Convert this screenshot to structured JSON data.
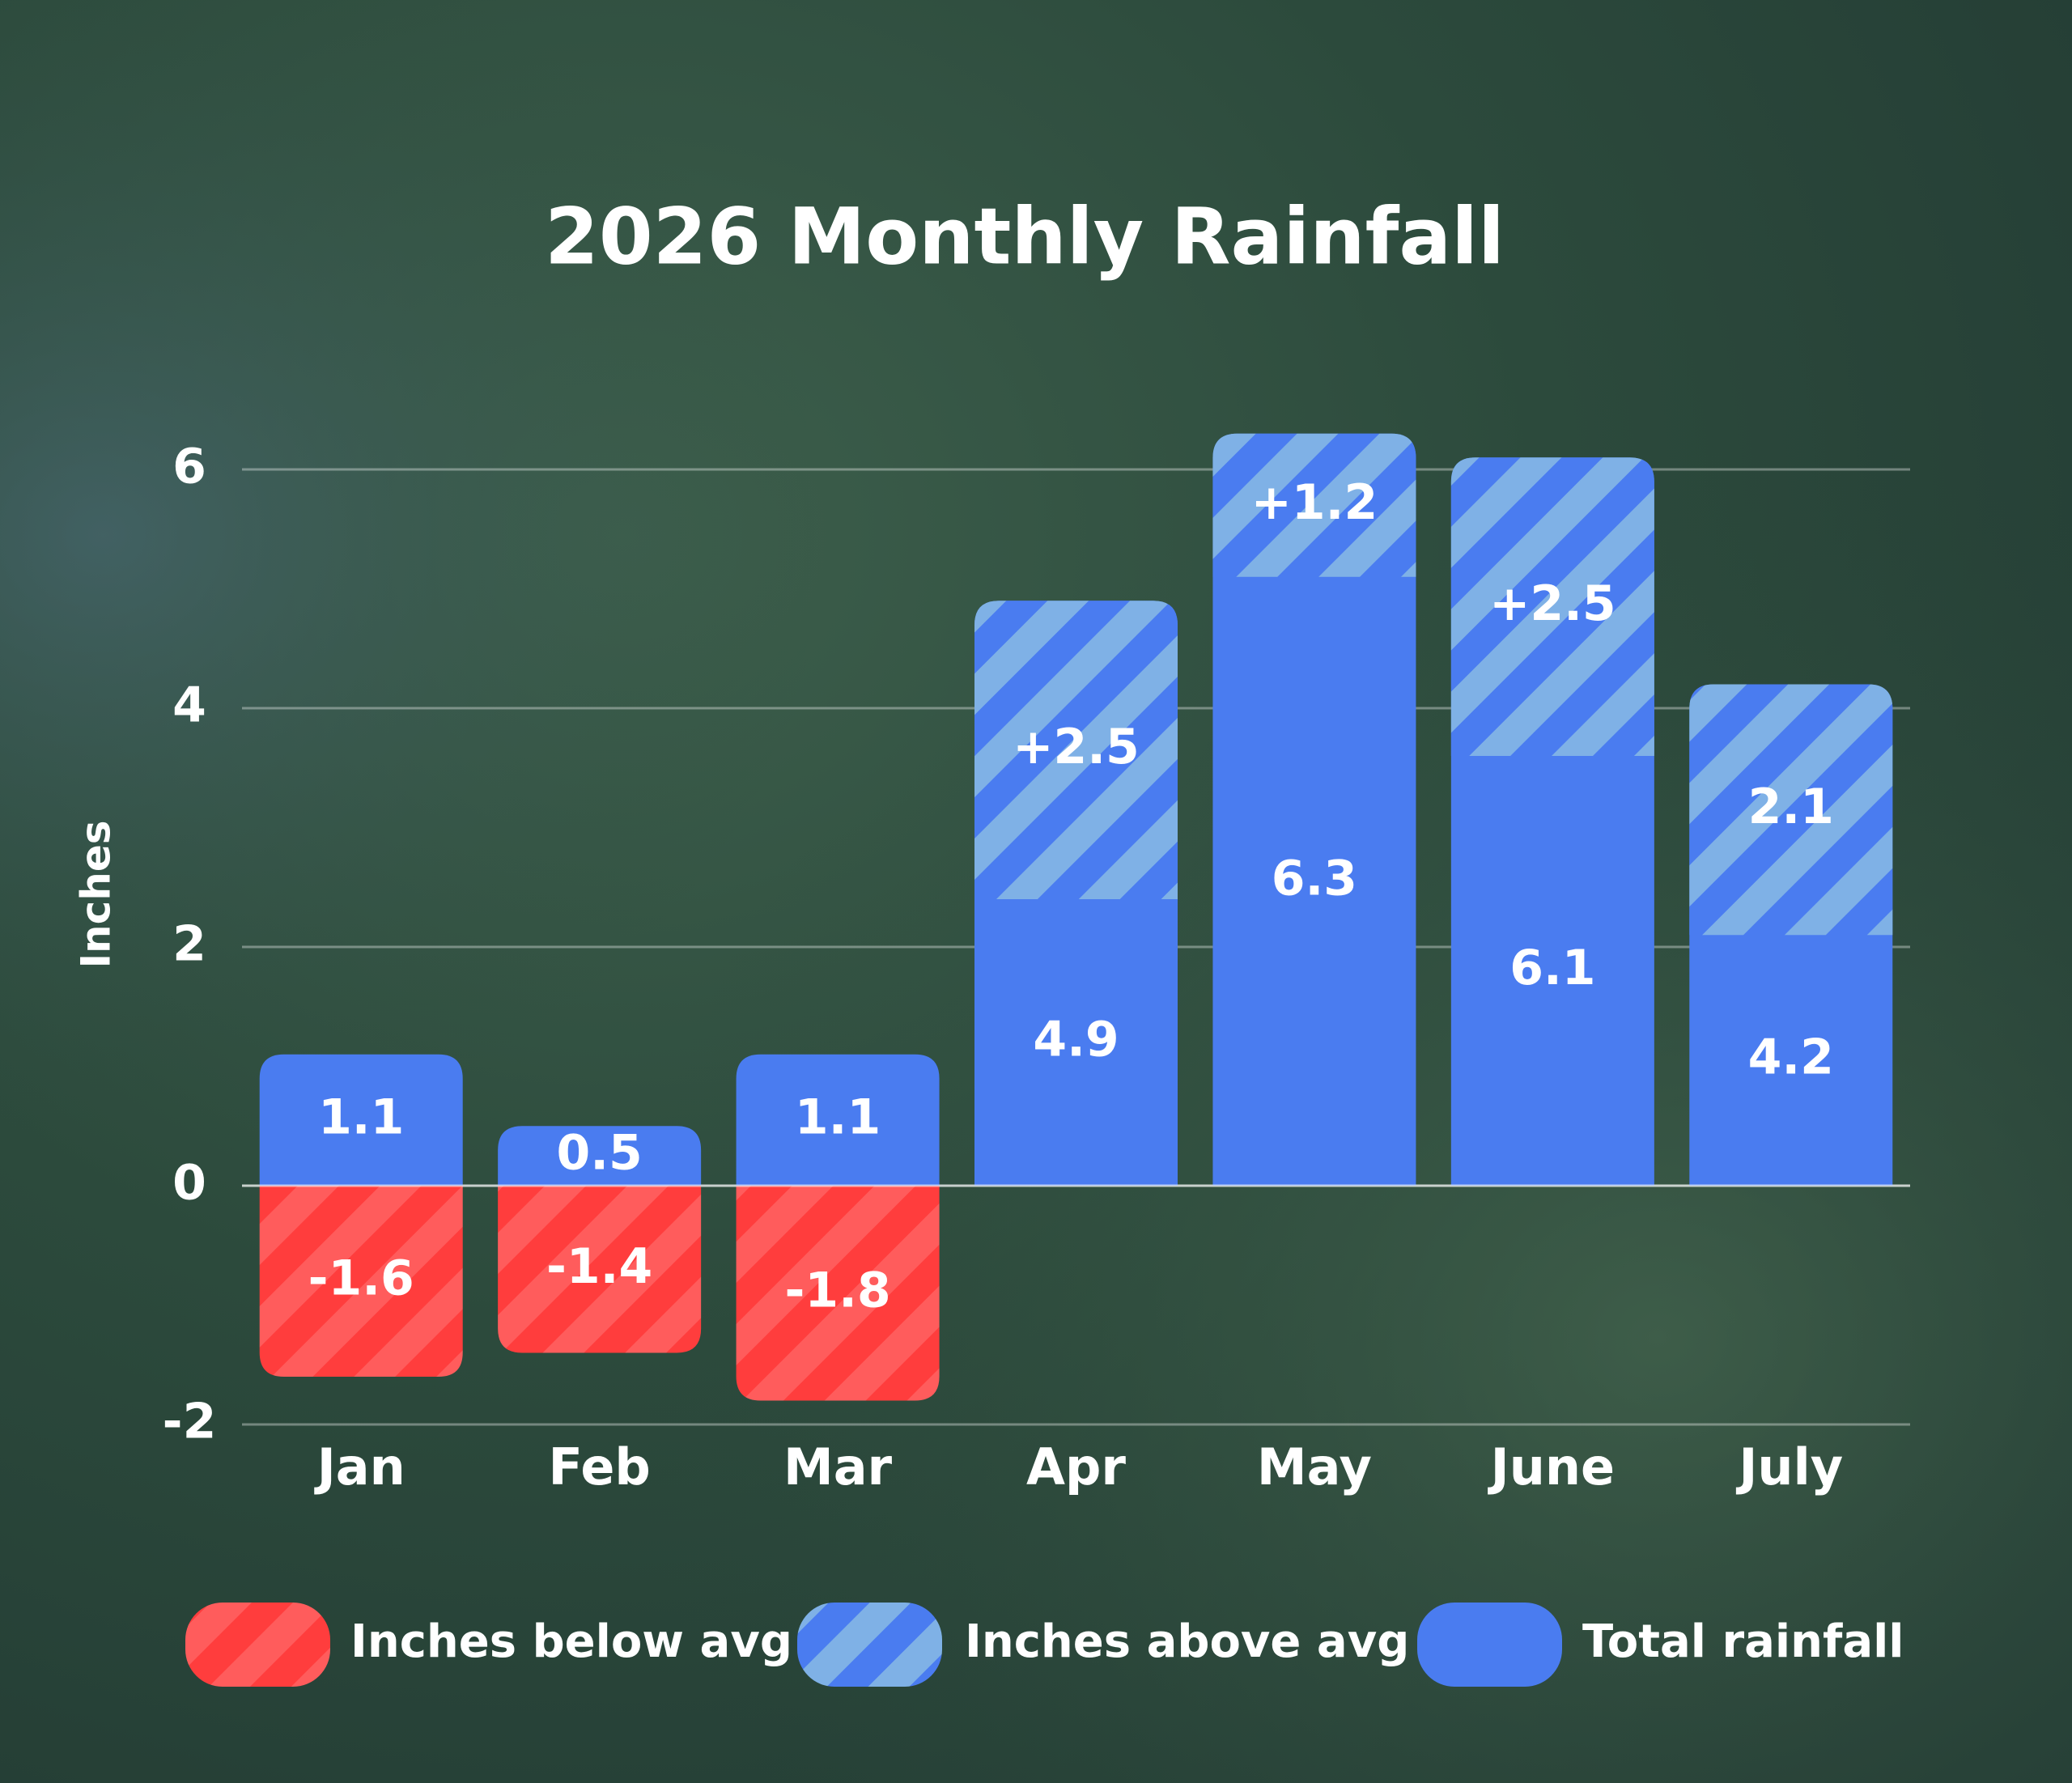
{
  "chart_data": {
    "type": "bar",
    "title": "2026 Monthly Rainfall",
    "y_label": "Inches",
    "categories": [
      "Jan",
      "Feb",
      "Mar",
      "Apr",
      "May",
      "June",
      "July"
    ],
    "series": [
      {
        "name": "Inches below avg",
        "color": "#ff3d3d",
        "stripe_color": "#ff5c5c",
        "hatch": true,
        "values": [
          -1.6,
          -1.4,
          -1.8,
          null,
          null,
          null,
          null
        ]
      },
      {
        "name": "Inches above avg",
        "color": "#4a7cf0",
        "stripe_color": "#7fb1e6",
        "hatch": true,
        "values": [
          null,
          null,
          null,
          2.5,
          1.2,
          2.5,
          2.1
        ],
        "value_labels": [
          null,
          null,
          null,
          "+2.5",
          "+1.2",
          "+2.5",
          "2.1"
        ]
      },
      {
        "name": "Total rainfall",
        "color": "#4a7cf0",
        "hatch": false,
        "values": [
          1.1,
          0.5,
          1.1,
          4.9,
          6.3,
          6.1,
          4.2
        ]
      }
    ],
    "ylim": [
      -2,
      6
    ],
    "yticks": [
      -2,
      0,
      2,
      4,
      6
    ],
    "grid": true,
    "legend": "bottom"
  }
}
